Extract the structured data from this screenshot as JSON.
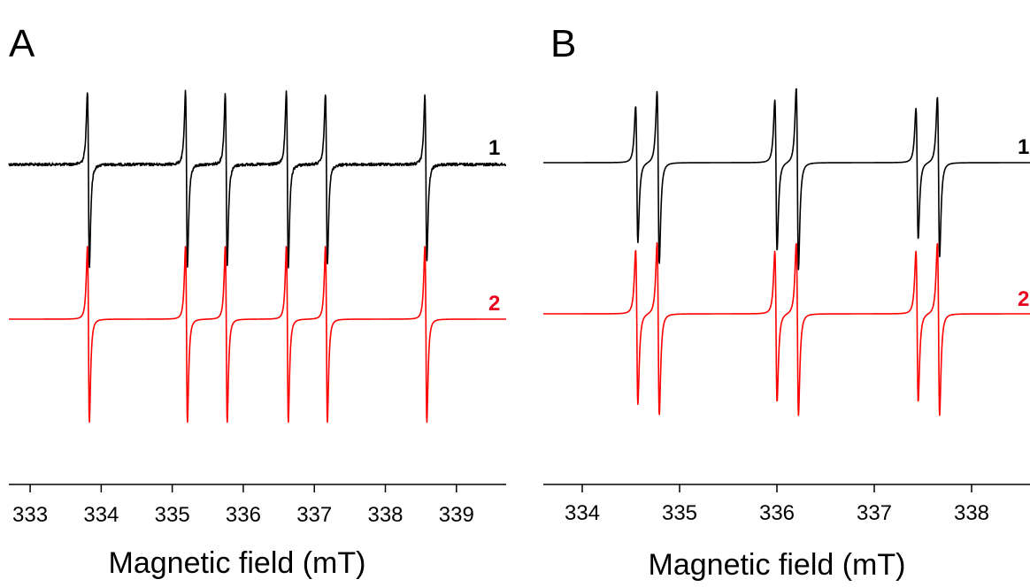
{
  "chart_data": [
    {
      "type": "line",
      "panel_label": "A",
      "xlabel": "Magnetic field (mT)",
      "ylabel": "",
      "xlim": [
        332.7,
        339.7
      ],
      "xticks": [
        333,
        334,
        335,
        336,
        337,
        338,
        339
      ],
      "xtick_labels": [
        "333",
        "334",
        "335",
        "336",
        "337",
        "338",
        "339"
      ],
      "series": [
        {
          "name": "1",
          "color": "#000000",
          "label_color": "#000000",
          "baseline": 0,
          "noise": true,
          "lines": [
            {
              "center": 333.82,
              "amp": 1.0
            },
            {
              "center": 335.2,
              "amp": 1.0
            },
            {
              "center": 335.76,
              "amp": 0.97
            },
            {
              "center": 336.62,
              "amp": 1.0
            },
            {
              "center": 337.17,
              "amp": 0.97
            },
            {
              "center": 338.57,
              "amp": 0.94
            }
          ]
        },
        {
          "name": "2",
          "color": "#ff0000",
          "label_color": "#e8001c",
          "baseline": -1.0,
          "noise": false,
          "lines": [
            {
              "center": 333.82,
              "amp": 1.0
            },
            {
              "center": 335.2,
              "amp": 1.0
            },
            {
              "center": 335.76,
              "amp": 1.0
            },
            {
              "center": 336.62,
              "amp": 1.0
            },
            {
              "center": 337.17,
              "amp": 1.0
            },
            {
              "center": 338.57,
              "amp": 1.0
            }
          ]
        }
      ],
      "grid": false,
      "legend": "none"
    },
    {
      "type": "line",
      "panel_label": "B",
      "xlabel": "Magnetic field (mT)",
      "ylabel": "",
      "xlim": [
        333.6,
        338.6
      ],
      "xticks": [
        334,
        335,
        336,
        337,
        338
      ],
      "xtick_labels": [
        "334",
        "335",
        "336",
        "337",
        "338"
      ],
      "series": [
        {
          "name": "1",
          "color": "#000000",
          "label_color": "#000000",
          "baseline": 0,
          "noise": false,
          "lines": [
            {
              "center": 334.56,
              "amp": 0.75
            },
            {
              "center": 334.78,
              "amp": 0.95
            },
            {
              "center": 335.99,
              "amp": 0.83
            },
            {
              "center": 336.21,
              "amp": 1.0
            },
            {
              "center": 337.44,
              "amp": 0.72
            },
            {
              "center": 337.66,
              "amp": 0.88
            }
          ]
        },
        {
          "name": "2",
          "color": "#ff0000",
          "label_color": "#e8001c",
          "baseline": -1.0,
          "noise": false,
          "lines": [
            {
              "center": 334.56,
              "amp": 0.85
            },
            {
              "center": 334.78,
              "amp": 0.95
            },
            {
              "center": 335.99,
              "amp": 0.83
            },
            {
              "center": 336.21,
              "amp": 0.95
            },
            {
              "center": 337.44,
              "amp": 0.83
            },
            {
              "center": 337.66,
              "amp": 0.95
            }
          ]
        }
      ],
      "grid": false,
      "legend": "none"
    }
  ]
}
